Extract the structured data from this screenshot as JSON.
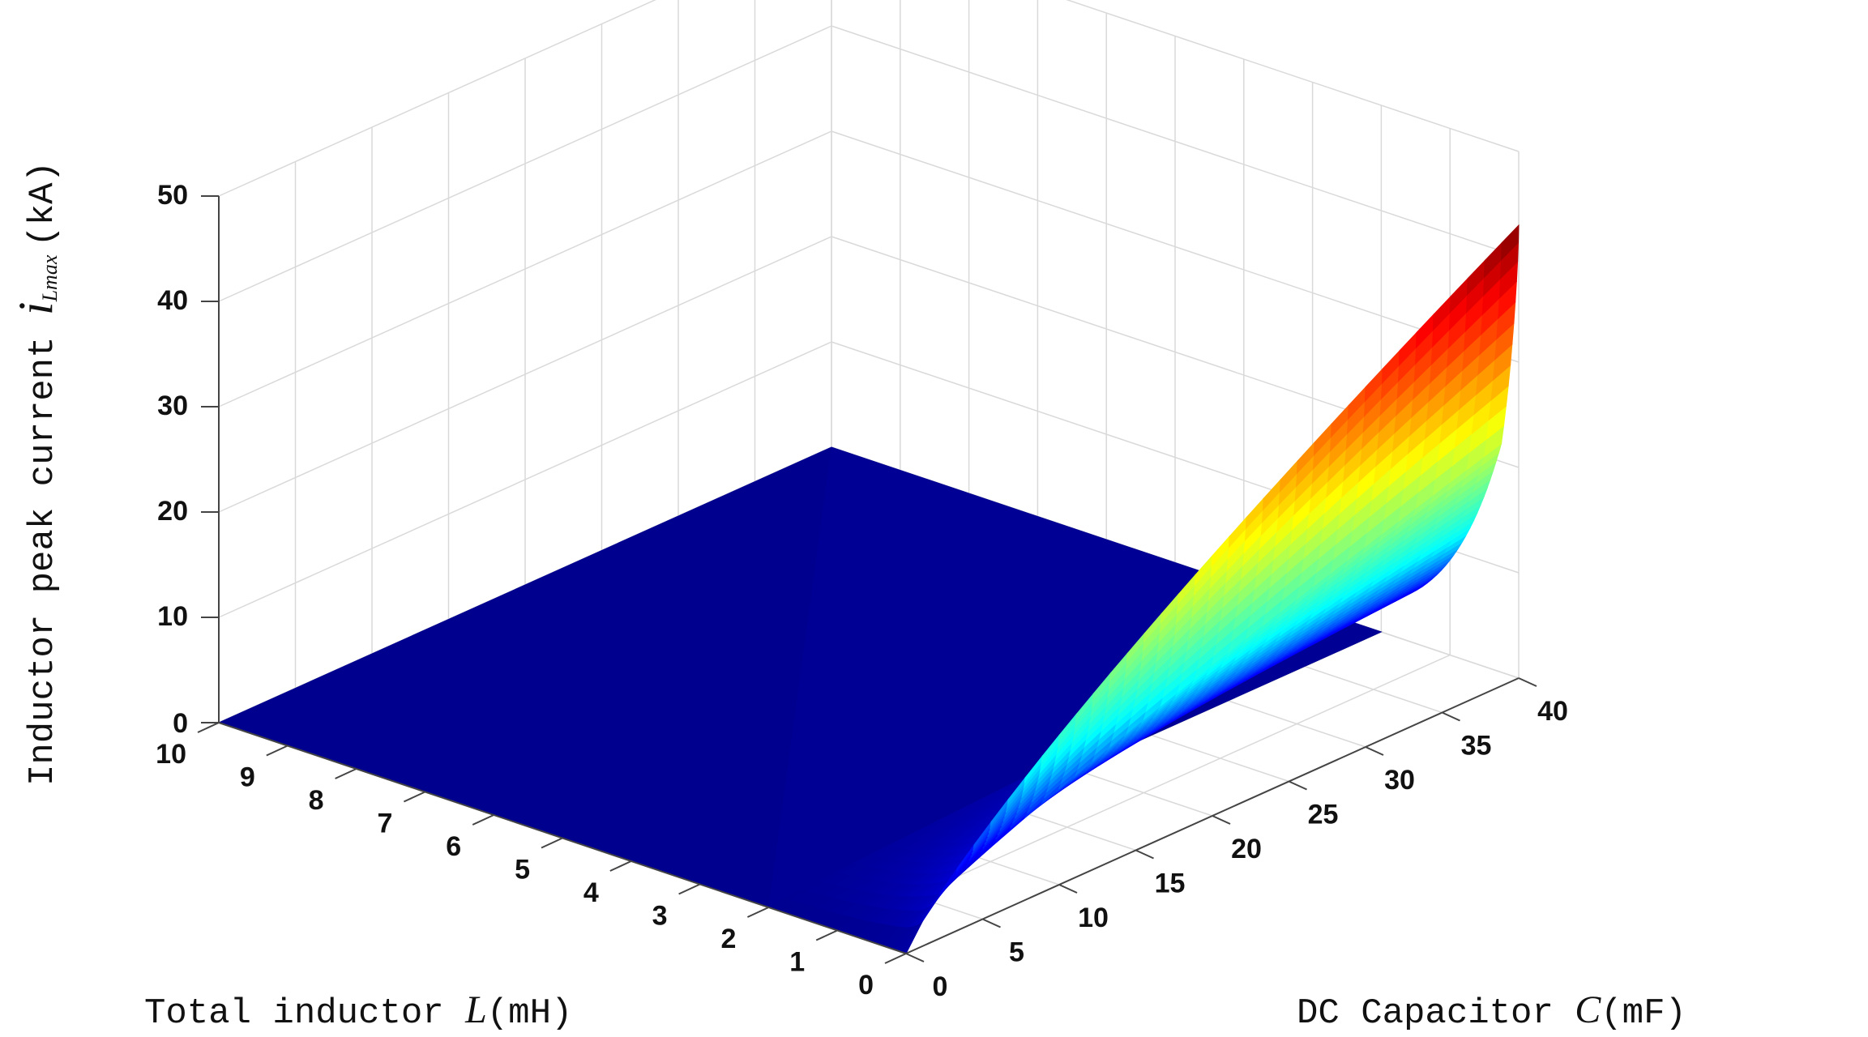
{
  "chart_data": {
    "type": "surface3d",
    "title": "",
    "x_axis": {
      "label_prefix": "Total inductor ",
      "label_var": "L",
      "label_unit": "(mH)",
      "range": [
        0,
        10
      ],
      "ticks": [
        "0",
        "1",
        "2",
        "3",
        "4",
        "5",
        "6",
        "7",
        "8",
        "9",
        "10"
      ]
    },
    "y_axis": {
      "label_prefix": "DC Capacitor ",
      "label_var": "C",
      "label_unit": "(mF)",
      "range": [
        0,
        40
      ],
      "ticks": [
        "0",
        "5",
        "10",
        "15",
        "20",
        "25",
        "30",
        "35",
        "40"
      ]
    },
    "z_axis": {
      "label_prefix": "Inductor peak current ",
      "label_var": "i",
      "label_sub": "Lmax",
      "label_unit": "(kA)",
      "range": [
        0,
        50
      ],
      "ticks": [
        "0",
        "10",
        "20",
        "30",
        "40",
        "50"
      ]
    },
    "colormap": "jet",
    "colormap_stops": [
      "#00008f",
      "#0000ff",
      "#00ffff",
      "#7fff7f",
      "#ffff00",
      "#ff7f00",
      "#ff0000",
      "#800000"
    ],
    "grid": true,
    "surface_samples": {
      "L_values": [
        0,
        0.5,
        1,
        1.5,
        2,
        3,
        4,
        5,
        6,
        7,
        8,
        9,
        10
      ],
      "C_values": [
        0,
        5,
        10,
        15,
        20,
        25,
        30,
        35,
        40
      ],
      "note_on_edges": [
        "L=0 edge rises to about 43 kA at C=40 mF",
        "surface is flat near 0 for L >= 2 mH"
      ],
      "peak_current_at_C40": {
        "L0": 43,
        "L0.25": 29,
        "L0.5": 25,
        "L0.75": 21,
        "L1": 17,
        "L1.5": 10,
        "L2": 5,
        "L3": 0.5,
        "L4": 0,
        "L10": 0
      }
    }
  }
}
